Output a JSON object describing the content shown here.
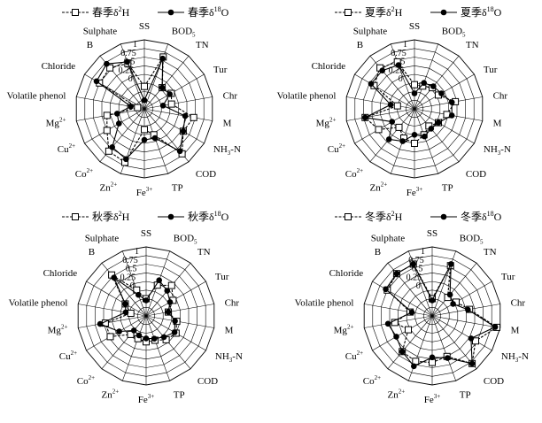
{
  "chart_data": [
    {
      "type": "radar",
      "radial_range": [
        -1,
        1
      ],
      "radial_ticks": [
        "1",
        "0.75",
        "0.5",
        "0.25",
        "0"
      ],
      "grid": "polygon",
      "legend_position": "top",
      "categories": [
        "SS",
        "BOD5",
        "TN",
        "Tur",
        "Chr",
        "M",
        "NH3-N",
        "COD",
        "TP",
        "Fe3+",
        "Zn2+",
        "Co2+",
        "Cu2+",
        "Mg2+",
        "Volatile phenol",
        "Chloride",
        "B",
        "Sulphate"
      ],
      "category_labels": [
        {
          "base": "SS"
        },
        {
          "base": "BOD",
          "sub": "5"
        },
        {
          "base": "TN"
        },
        {
          "base": "Tur"
        },
        {
          "base": "Chr"
        },
        {
          "base": "M"
        },
        {
          "base": "NH",
          "sub": "3",
          "rest": "-N"
        },
        {
          "base": "COD"
        },
        {
          "base": "TP"
        },
        {
          "base": "Fe",
          "sup": "3+"
        },
        {
          "base": "Zn",
          "sup": "2+"
        },
        {
          "base": "Co",
          "sup": "2+"
        },
        {
          "base": "Cu",
          "sup": "2+"
        },
        {
          "base": "Mg",
          "sup": "2+"
        },
        {
          "base": "Volatile phenol"
        },
        {
          "base": "Chloride"
        },
        {
          "base": "B"
        },
        {
          "base": "Sulphate"
        }
      ],
      "legend": [
        {
          "season": "春季",
          "isotope": "2",
          "element": "H",
          "marker": "open-square"
        },
        {
          "season": "春季",
          "isotope": "18",
          "element": "O",
          "marker": "filled-circle"
        }
      ],
      "series": [
        {
          "name": "春季δ2H",
          "marker": "open-square",
          "values": [
            -0.35,
            0.6,
            -0.2,
            -0.1,
            -0.2,
            0.45,
            0.3,
            0.7,
            -0.2,
            -0.4,
            0.65,
            0.6,
            0.25,
            0.1,
            -0.8,
            0.5,
            0.55,
            0.4
          ]
        },
        {
          "name": "春季δ18O",
          "marker": "filled-circle",
          "values": [
            -0.75,
            0.55,
            -0.2,
            -0.15,
            -0.45,
            0.2,
            0.3,
            0.6,
            -0.1,
            -0.1,
            0.55,
            0.45,
            -0.15,
            -0.2,
            -0.6,
            0.6,
            0.7,
            0.45
          ]
        }
      ]
    },
    {
      "type": "radar",
      "radial_range": [
        -1,
        1
      ],
      "radial_ticks": [
        "1",
        "0.75",
        "0.5",
        "0.25",
        "0"
      ],
      "grid": "polygon",
      "legend_position": "top",
      "categories": [
        "SS",
        "BOD5",
        "TN",
        "Tur",
        "Chr",
        "M",
        "NH3-N",
        "COD",
        "TP",
        "Fe3+",
        "Zn2+",
        "Co2+",
        "Cu2+",
        "Mg2+",
        "Volatile phenol",
        "Chloride",
        "B",
        "Sulphate"
      ],
      "category_labels": [
        {
          "base": "SS"
        },
        {
          "base": "BOD",
          "sub": "5"
        },
        {
          "base": "TN"
        },
        {
          "base": "Tur"
        },
        {
          "base": "Chr"
        },
        {
          "base": "M"
        },
        {
          "base": "NH",
          "sub": "3",
          "rest": "-N"
        },
        {
          "base": "COD"
        },
        {
          "base": "TP"
        },
        {
          "base": "Fe",
          "sup": "3+"
        },
        {
          "base": "Zn",
          "sup": "2+"
        },
        {
          "base": "Co",
          "sup": "2+"
        },
        {
          "base": "Cu",
          "sup": "2+"
        },
        {
          "base": "Mg",
          "sup": "2+"
        },
        {
          "base": "Volatile phenol"
        },
        {
          "base": "Chloride"
        },
        {
          "base": "B"
        },
        {
          "base": "Sulphate"
        }
      ],
      "legend": [
        {
          "season": "夏季",
          "isotope": "2",
          "element": "H",
          "marker": "open-square"
        },
        {
          "season": "夏季",
          "isotope": "18",
          "element": "O",
          "marker": "filled-circle"
        }
      ],
      "series": [
        {
          "name": "夏季δ2H",
          "marker": "open-square",
          "values": [
            -0.3,
            -0.3,
            -0.2,
            -0.2,
            0.2,
            -0.05,
            -0.2,
            -0.35,
            -0.2,
            0.0,
            -0.1,
            -0.3,
            0.2,
            0.45,
            -0.5,
            0.35,
            0.55,
            0.45
          ]
        },
        {
          "name": "夏季δ18O",
          "marker": "filled-circle",
          "values": [
            -0.55,
            -0.2,
            -0.15,
            -0.1,
            0.1,
            0.1,
            -0.2,
            -0.25,
            -0.15,
            -0.25,
            0.0,
            0.15,
            -0.25,
            0.45,
            -0.3,
            0.45,
            0.45,
            0.35
          ]
        }
      ]
    },
    {
      "type": "radar",
      "radial_range": [
        -1,
        1
      ],
      "radial_ticks": [
        "1",
        "0.75",
        "0.5",
        "0.25",
        "0"
      ],
      "grid": "polygon",
      "legend_position": "top",
      "categories": [
        "SS",
        "BOD5",
        "TN",
        "Tur",
        "Chr",
        "M",
        "NH3-N",
        "COD",
        "TP",
        "Fe3+",
        "Zn2+",
        "Co2+",
        "Cu2+",
        "Mg2+",
        "Volatile phenol",
        "Chloride",
        "B",
        "Sulphate"
      ],
      "category_labels": [
        {
          "base": "SS"
        },
        {
          "base": "BOD",
          "sub": "5"
        },
        {
          "base": "TN"
        },
        {
          "base": "Tur"
        },
        {
          "base": "Chr"
        },
        {
          "base": "M"
        },
        {
          "base": "NH",
          "sub": "3",
          "rest": "-N"
        },
        {
          "base": "COD"
        },
        {
          "base": "TP"
        },
        {
          "base": "Fe",
          "sup": "3+"
        },
        {
          "base": "Zn",
          "sup": "2+"
        },
        {
          "base": "Co",
          "sup": "2+"
        },
        {
          "base": "Cu",
          "sup": "2+"
        },
        {
          "base": "Mg",
          "sup": "2+"
        },
        {
          "base": "Volatile phenol"
        },
        {
          "base": "Chloride"
        },
        {
          "base": "B"
        },
        {
          "base": "Sulphate"
        }
      ],
      "legend": [
        {
          "season": "秋季",
          "isotope": "2",
          "element": "H",
          "marker": "open-square"
        },
        {
          "season": "秋季",
          "isotope": "18",
          "element": "O",
          "marker": "filled-circle"
        }
      ],
      "series": [
        {
          "name": "秋季δ2H",
          "marker": "open-square",
          "values": [
            -0.5,
            -0.05,
            0.15,
            -0.1,
            -0.35,
            -0.1,
            0.0,
            -0.1,
            -0.25,
            -0.25,
            -0.3,
            -0.3,
            0.2,
            0.2,
            -0.55,
            -0.3,
            0.55,
            -0.2
          ]
        },
        {
          "name": "秋季δ18O",
          "marker": "filled-circle",
          "values": [
            -0.55,
            0.1,
            -0.05,
            -0.2,
            -0.35,
            -0.15,
            -0.05,
            -0.2,
            -0.3,
            -0.35,
            -0.4,
            -0.45,
            -0.1,
            0.35,
            -0.4,
            -0.3,
            0.45,
            -0.35
          ]
        }
      ]
    },
    {
      "type": "radar",
      "radial_range": [
        -1,
        1
      ],
      "radial_ticks": [
        "1",
        "0.75",
        "0.5",
        "0.25",
        "0"
      ],
      "grid": "polygon",
      "legend_position": "top",
      "categories": [
        "SS",
        "BOD5",
        "TN",
        "Tur",
        "Chr",
        "M",
        "NH3-N",
        "COD",
        "TP",
        "Fe3+",
        "Zn2+",
        "Co2+",
        "Cu2+",
        "Mg2+",
        "Volatile phenol",
        "Chloride",
        "B",
        "Sulphate"
      ],
      "category_labels": [
        {
          "base": "SS"
        },
        {
          "base": "BOD",
          "sub": "5"
        },
        {
          "base": "TN"
        },
        {
          "base": "Tur"
        },
        {
          "base": "Chr"
        },
        {
          "base": "M"
        },
        {
          "base": "NH",
          "sub": "3",
          "rest": "-N"
        },
        {
          "base": "COD"
        },
        {
          "base": "TP"
        },
        {
          "base": "Fe",
          "sup": "3+"
        },
        {
          "base": "Zn",
          "sup": "2+"
        },
        {
          "base": "Co",
          "sup": "2+"
        },
        {
          "base": "Cu",
          "sup": "2+"
        },
        {
          "base": "Mg",
          "sup": "2+"
        },
        {
          "base": "Volatile phenol"
        },
        {
          "base": "Chloride"
        },
        {
          "base": "B"
        },
        {
          "base": "Sulphate"
        }
      ],
      "legend": [
        {
          "season": "冬季",
          "isotope": "2",
          "element": "H",
          "marker": "open-square"
        },
        {
          "season": "冬季",
          "isotope": "18",
          "element": "O",
          "marker": "filled-circle"
        }
      ],
      "series": [
        {
          "name": "冬季δ2H",
          "marker": "open-square",
          "values": [
            -0.5,
            0.55,
            -0.3,
            -0.2,
            0.1,
            0.9,
            0.45,
            0.8,
            0.25,
            0.35,
            0.4,
            0.35,
            -0.2,
            0.1,
            -0.35,
            0.5,
            0.6,
            0.6
          ]
        },
        {
          "name": "冬季δ18O",
          "marker": "filled-circle",
          "values": [
            -0.55,
            0.6,
            -0.2,
            -0.3,
            0.05,
            0.85,
            0.3,
            0.8,
            0.3,
            0.2,
            0.55,
            0.35,
            0.2,
            0.3,
            -0.4,
            0.55,
            0.6,
            0.6
          ]
        }
      ]
    }
  ]
}
